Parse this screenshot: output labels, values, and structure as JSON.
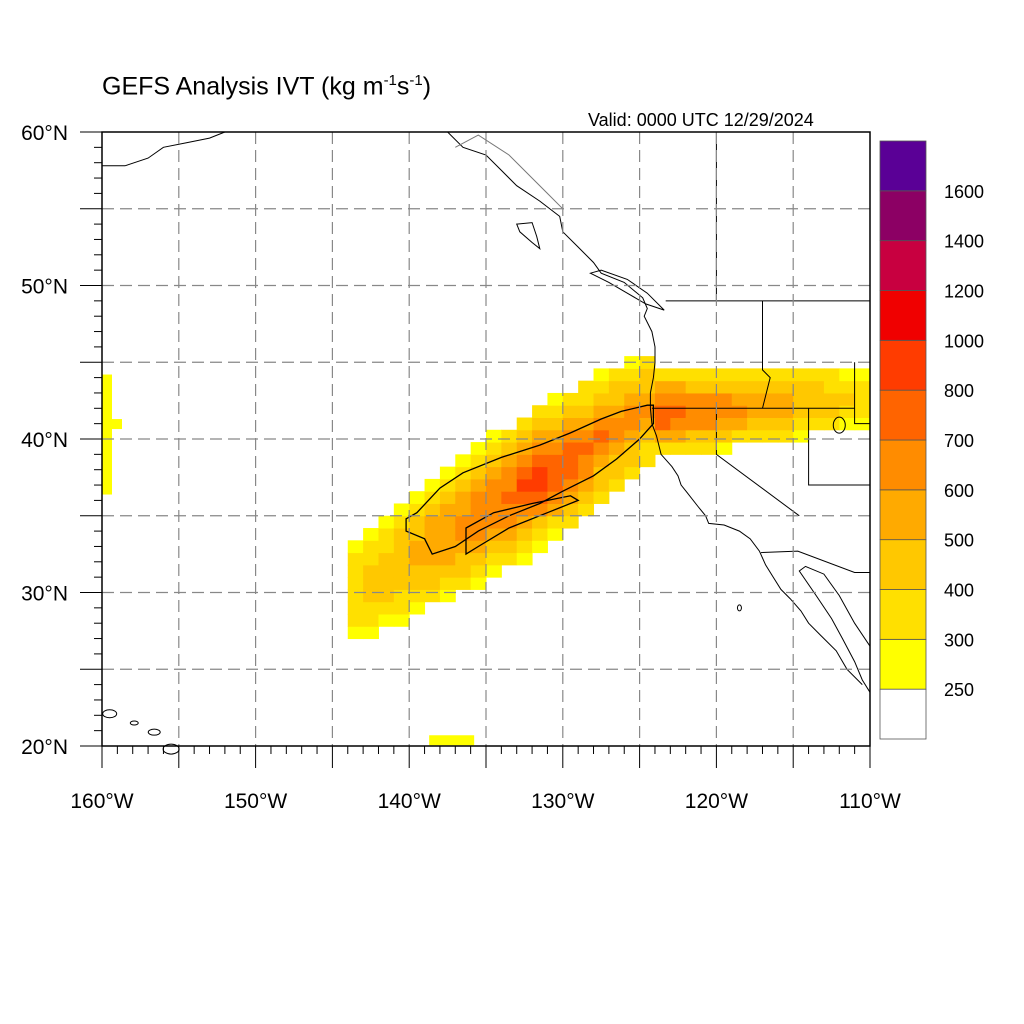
{
  "title": {
    "prefix": "GEFS Analysis IVT (kg m",
    "exp1": "-1",
    "mid": "s",
    "exp2": "-1",
    "suffix": ")"
  },
  "valid": "Valid: 0000 UTC 12/29/2024",
  "map": {
    "lon_range": [
      -160,
      -110
    ],
    "lat_range": [
      20,
      60
    ],
    "gridlines": "dashed every 5 degrees",
    "lon_labels": [
      "160°W",
      "150°W",
      "140°W",
      "130°W",
      "120°W",
      "110°W"
    ],
    "lat_labels": [
      "60°N",
      "50°N",
      "40°N",
      "30°N",
      "20°N"
    ]
  },
  "colorbar": {
    "levels": [
      "250",
      "300",
      "400",
      "500",
      "600",
      "700",
      "800",
      "1000",
      "1200",
      "1400",
      "1600"
    ],
    "colors": [
      "#ffffff",
      "#ffff00",
      "#ffe000",
      "#ffc800",
      "#ffaa00",
      "#ff8c00",
      "#ff6400",
      "#ff3c00",
      "#f00000",
      "#c80040",
      "#8c0064",
      "#5a0096"
    ]
  },
  "chart_data": {
    "type": "heatmap",
    "title": "GEFS Analysis IVT (kg m-1s-1)",
    "variable": "IVT",
    "units": "kg m-1 s-1",
    "valid_time": "0000 UTC 12/29/2024",
    "xlim": [
      -160,
      -110
    ],
    "ylim": [
      20,
      60
    ],
    "contour_levels": [
      250,
      300,
      400,
      500,
      600,
      700,
      800,
      1000,
      1200,
      1400,
      1600
    ],
    "contour_outline": 500,
    "features": [
      {
        "region": "atmospheric river core",
        "lon": [
          -138,
          -124
        ],
        "lat": [
          32,
          42
        ],
        "max_value_range": [
          700,
          800
        ]
      },
      {
        "region": "plume",
        "lon": [
          -143,
          -111
        ],
        "lat": [
          28,
          46
        ],
        "value_range": [
          250,
          600
        ]
      },
      {
        "region": "isolated",
        "lon": [
          -160,
          -159
        ],
        "lat": [
          38,
          44
        ],
        "value_range": [
          250,
          300
        ]
      },
      {
        "region": "isolated",
        "lon": [
          -138,
          -137
        ],
        "lat": [
          20,
          21
        ],
        "value_range": [
          250,
          300
        ]
      }
    ]
  }
}
